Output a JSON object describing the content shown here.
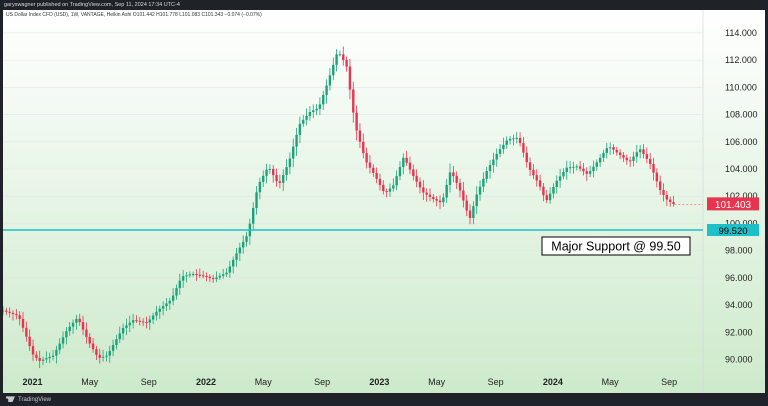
{
  "header": {
    "published": "garyswagner published on TradingView.com, Sep 11, 2024 17:34 UTC-4",
    "symbol_line": "US Dollar Index CFD (USD), 1W, VANTAGE, Heikin Ashi O101.442 H101.778 L101.083 C101.343 −0.074 (−0.07%)"
  },
  "footer": {
    "brand": "TradingView"
  },
  "colors": {
    "bg_top": "#ffffff",
    "bg_bottom": "#cdeacb",
    "up": "#1aa37a",
    "down": "#e8344e",
    "support_line": "#1cc0c6",
    "price_badge": "#e8344e",
    "support_badge": "#1cc0c6"
  },
  "chart_data": {
    "type": "candlestick",
    "ylim": [
      88.5,
      114.8
    ],
    "y_ticks": [
      90,
      92,
      94,
      96,
      98,
      100,
      102,
      104,
      106,
      108,
      110,
      112,
      114
    ],
    "y_tick_labels": [
      "90.000",
      "92.000",
      "94.000",
      "96.000",
      "98.000",
      "100.000",
      "102.000",
      "104.000",
      "106.000",
      "108.000",
      "110.000",
      "112.000",
      "114.000"
    ],
    "x_range_months": [
      2020.83,
      2024.75
    ],
    "x_ticks": [
      {
        "t": 2021.0,
        "label": "2021",
        "bold": true
      },
      {
        "t": 2021.33,
        "label": "May",
        "bold": false
      },
      {
        "t": 2021.67,
        "label": "Sep",
        "bold": false
      },
      {
        "t": 2022.0,
        "label": "2022",
        "bold": true
      },
      {
        "t": 2022.33,
        "label": "May",
        "bold": false
      },
      {
        "t": 2022.67,
        "label": "Sep",
        "bold": false
      },
      {
        "t": 2023.0,
        "label": "2023",
        "bold": true
      },
      {
        "t": 2023.33,
        "label": "May",
        "bold": false
      },
      {
        "t": 2023.67,
        "label": "Sep",
        "bold": false
      },
      {
        "t": 2024.0,
        "label": "2024",
        "bold": true
      },
      {
        "t": 2024.33,
        "label": "May",
        "bold": false
      },
      {
        "t": 2024.67,
        "label": "Sep",
        "bold": false
      }
    ],
    "anchors": [
      [
        2020.83,
        93.6
      ],
      [
        2020.92,
        93.2
      ],
      [
        2020.97,
        91.5
      ],
      [
        2021.0,
        90.4
      ],
      [
        2021.04,
        89.9
      ],
      [
        2021.12,
        90.3
      ],
      [
        2021.2,
        92.2
      ],
      [
        2021.26,
        93.1
      ],
      [
        2021.32,
        91.4
      ],
      [
        2021.38,
        90.1
      ],
      [
        2021.43,
        90.3
      ],
      [
        2021.52,
        92.3
      ],
      [
        2021.58,
        92.9
      ],
      [
        2021.66,
        92.7
      ],
      [
        2021.72,
        93.6
      ],
      [
        2021.8,
        94.4
      ],
      [
        2021.86,
        96.1
      ],
      [
        2021.92,
        96.3
      ],
      [
        2022.0,
        96.1
      ],
      [
        2022.04,
        95.9
      ],
      [
        2022.12,
        96.4
      ],
      [
        2022.18,
        97.9
      ],
      [
        2022.24,
        99.2
      ],
      [
        2022.3,
        102.8
      ],
      [
        2022.36,
        104.2
      ],
      [
        2022.42,
        102.8
      ],
      [
        2022.48,
        104.6
      ],
      [
        2022.54,
        107.3
      ],
      [
        2022.6,
        108.2
      ],
      [
        2022.65,
        108.5
      ],
      [
        2022.7,
        110.3
      ],
      [
        2022.76,
        112.7
      ],
      [
        2022.81,
        111.6
      ],
      [
        2022.86,
        107.2
      ],
      [
        2022.92,
        104.6
      ],
      [
        2022.97,
        103.6
      ],
      [
        2023.03,
        102.2
      ],
      [
        2023.08,
        102.8
      ],
      [
        2023.14,
        104.9
      ],
      [
        2023.19,
        103.6
      ],
      [
        2023.25,
        102.3
      ],
      [
        2023.31,
        101.8
      ],
      [
        2023.36,
        101.5
      ],
      [
        2023.41,
        103.9
      ],
      [
        2023.46,
        102.6
      ],
      [
        2023.52,
        100.3
      ],
      [
        2023.56,
        102.1
      ],
      [
        2023.62,
        103.9
      ],
      [
        2023.68,
        105.2
      ],
      [
        2023.74,
        106.2
      ],
      [
        2023.8,
        106.3
      ],
      [
        2023.86,
        104.1
      ],
      [
        2023.92,
        102.9
      ],
      [
        2023.96,
        101.6
      ],
      [
        2024.02,
        103.1
      ],
      [
        2024.08,
        104.1
      ],
      [
        2024.14,
        104.2
      ],
      [
        2024.2,
        103.6
      ],
      [
        2024.26,
        104.6
      ],
      [
        2024.32,
        105.7
      ],
      [
        2024.38,
        105.1
      ],
      [
        2024.44,
        104.5
      ],
      [
        2024.5,
        105.5
      ],
      [
        2024.56,
        104.4
      ],
      [
        2024.62,
        102.4
      ],
      [
        2024.66,
        101.7
      ],
      [
        2024.7,
        101.4
      ]
    ],
    "last_price_label": "101.403",
    "last_price": 101.403,
    "support_level": 99.52,
    "support_label": "99.520",
    "annotation": "Major Support @ 99.50"
  }
}
